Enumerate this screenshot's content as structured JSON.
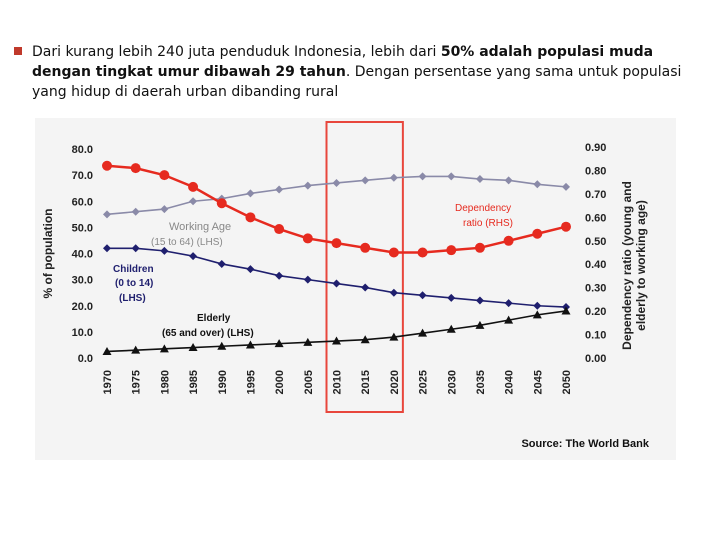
{
  "slide": {
    "bullet_text_1": "Dari kurang lebih 240 juta penduduk Indonesia, lebih dari ",
    "bullet_bold": "50% adalah populasi muda dengan tingkat umur dibawah 29 tahun",
    "bullet_text_2": ". Dengan persentase yang sama untuk populasi yang hidup di daerah urban dibanding rural",
    "accent_color": "#c0392b"
  },
  "chart_data": {
    "type": "line",
    "xlabel": "",
    "ylabel": "% of population",
    "ylabel_right": [
      "Dependency ratio (young and",
      "elderly to working age)"
    ],
    "ylim": [
      0,
      80
    ],
    "ylim_right": [
      0,
      0.9
    ],
    "left_ticks": [
      "0.0",
      "10.0",
      "20.0",
      "30.0",
      "40.0",
      "50.0",
      "60.0",
      "70.0",
      "80.0"
    ],
    "right_ticks": [
      "0.00",
      "0.10",
      "0.20",
      "0.30",
      "0.40",
      "0.50",
      "0.60",
      "0.70",
      "0.80",
      "0.90"
    ],
    "categories": [
      "1970",
      "1975",
      "1980",
      "1985",
      "1990",
      "1995",
      "2000",
      "2005",
      "2010",
      "2015",
      "2020",
      "2025",
      "2030",
      "2035",
      "2040",
      "2045",
      "2050"
    ],
    "series": [
      {
        "name": "Working Age",
        "sublabel": "(15 to 64) (LHS)",
        "axis": "left",
        "color": "#8a8aa8",
        "marker": "diamond",
        "values": [
          55,
          56,
          57,
          60,
          61,
          63,
          64.5,
          66,
          67,
          68,
          69,
          69.5,
          69.5,
          68.5,
          68,
          66.5,
          65.5
        ]
      },
      {
        "name": "Children",
        "sublabel": "(0 to 14)",
        "sublabel2": "(LHS)",
        "axis": "left",
        "color": "#1f1f6e",
        "marker": "diamond",
        "values": [
          42,
          42,
          41,
          39,
          36,
          34,
          31.5,
          30,
          28.5,
          27,
          25,
          24,
          23,
          22,
          21,
          20,
          19.5
        ]
      },
      {
        "name": "Elderly",
        "sublabel": "(65 and over) (LHS)",
        "axis": "left",
        "color": "#111111",
        "marker": "triangle",
        "values": [
          2.5,
          3,
          3.5,
          4,
          4.5,
          5,
          5.5,
          6,
          6.5,
          7,
          8,
          9.5,
          11,
          12.5,
          14.5,
          16.5,
          18
        ]
      },
      {
        "name": "Dependency",
        "sublabel": "ratio (RHS)",
        "axis": "right",
        "color": "#e62a1f",
        "marker": "circle",
        "values": [
          0.82,
          0.81,
          0.78,
          0.73,
          0.66,
          0.6,
          0.55,
          0.51,
          0.49,
          0.47,
          0.45,
          0.45,
          0.46,
          0.47,
          0.5,
          0.53,
          0.56
        ]
      }
    ],
    "highlight": {
      "from": "2010",
      "to": "2020",
      "color": "#e8463c"
    },
    "source": "Source: The World Bank"
  }
}
